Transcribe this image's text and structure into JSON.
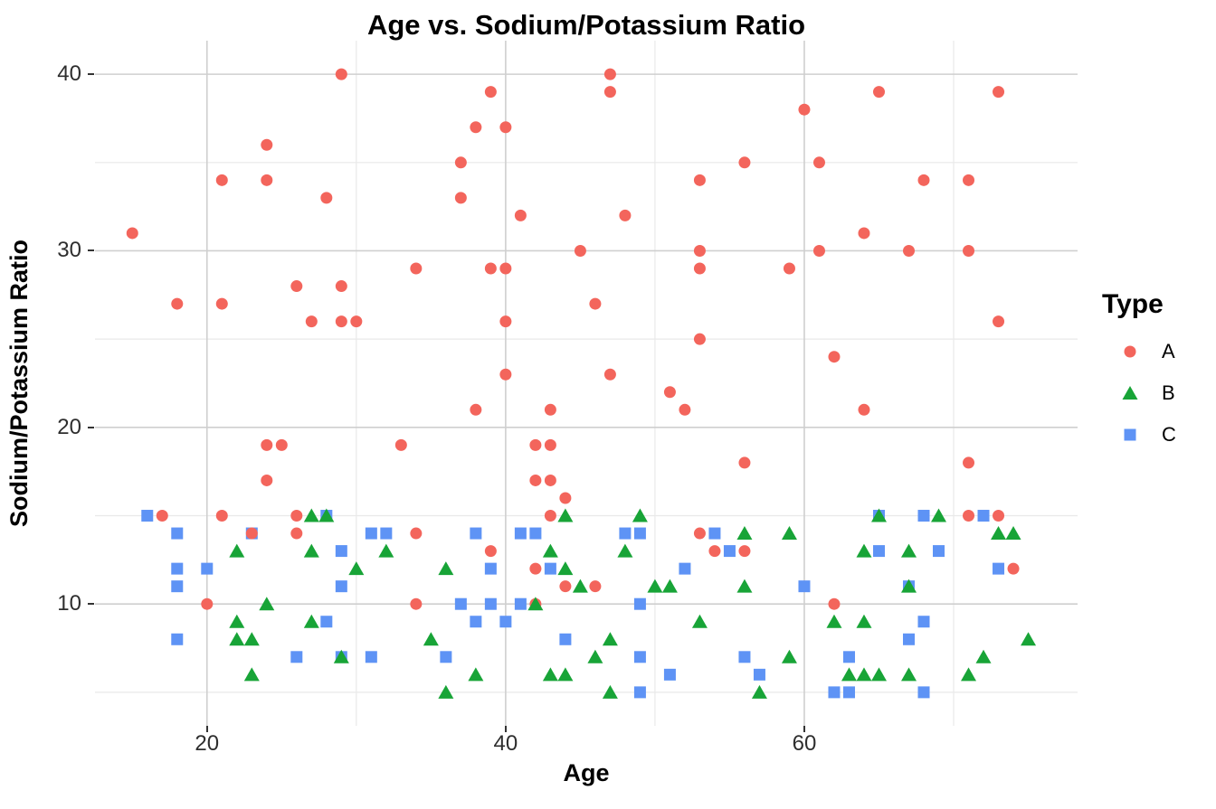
{
  "title": "Age vs. Sodium/Potassium Ratio",
  "legend": {
    "title": "Type"
  },
  "chart_data": {
    "type": "scatter",
    "title": "Age vs. Sodium/Potassium Ratio",
    "xlabel": "Age",
    "ylabel": "Sodium/Potassium Ratio",
    "x_ticks": [
      20,
      40,
      60
    ],
    "x_minor_ticks": [
      30,
      50,
      70
    ],
    "y_ticks": [
      10,
      20,
      30,
      40
    ],
    "y_minor_ticks": [
      5,
      15,
      25,
      35
    ],
    "xlim": [
      12.5,
      78.3
    ],
    "ylim": [
      3.1,
      41.9
    ],
    "grid": true,
    "legend_position": "right",
    "colors": {
      "major_grid": "#cfcfcf",
      "minor_grid": "#e9e9e9",
      "tick": "#333333"
    },
    "series": [
      {
        "name": "A",
        "shape": "circle",
        "color": "#f3655c",
        "points": [
          [
            15,
            31
          ],
          [
            17,
            15
          ],
          [
            18,
            27
          ],
          [
            20,
            10
          ],
          [
            21,
            34
          ],
          [
            21,
            27
          ],
          [
            21,
            15
          ],
          [
            23,
            14
          ],
          [
            24,
            36
          ],
          [
            24,
            34
          ],
          [
            24,
            19
          ],
          [
            24,
            17
          ],
          [
            25,
            19
          ],
          [
            26,
            28
          ],
          [
            26,
            15
          ],
          [
            26,
            14
          ],
          [
            27,
            26
          ],
          [
            28,
            33
          ],
          [
            29,
            40
          ],
          [
            29,
            28
          ],
          [
            29,
            26
          ],
          [
            30,
            26
          ],
          [
            33,
            19
          ],
          [
            34,
            29
          ],
          [
            34,
            14
          ],
          [
            34,
            10
          ],
          [
            37,
            35
          ],
          [
            37,
            33
          ],
          [
            38,
            37
          ],
          [
            38,
            21
          ],
          [
            39,
            39
          ],
          [
            39,
            29
          ],
          [
            39,
            13
          ],
          [
            40,
            37
          ],
          [
            40,
            29
          ],
          [
            40,
            26
          ],
          [
            40,
            23
          ],
          [
            41,
            32
          ],
          [
            42,
            19
          ],
          [
            42,
            17
          ],
          [
            42,
            12
          ],
          [
            42,
            10
          ],
          [
            43,
            21
          ],
          [
            43,
            19
          ],
          [
            43,
            17
          ],
          [
            43,
            15
          ],
          [
            44,
            16
          ],
          [
            44,
            11
          ],
          [
            45,
            30
          ],
          [
            46,
            27
          ],
          [
            46,
            11
          ],
          [
            47,
            40
          ],
          [
            47,
            39
          ],
          [
            47,
            23
          ],
          [
            48,
            32
          ],
          [
            51,
            22
          ],
          [
            52,
            21
          ],
          [
            53,
            34
          ],
          [
            53,
            30
          ],
          [
            53,
            29
          ],
          [
            53,
            25
          ],
          [
            53,
            14
          ],
          [
            54,
            13
          ],
          [
            56,
            35
          ],
          [
            56,
            18
          ],
          [
            56,
            13
          ],
          [
            59,
            29
          ],
          [
            60,
            38
          ],
          [
            61,
            35
          ],
          [
            61,
            30
          ],
          [
            62,
            24
          ],
          [
            62,
            10
          ],
          [
            64,
            31
          ],
          [
            64,
            21
          ],
          [
            65,
            39
          ],
          [
            67,
            30
          ],
          [
            68,
            34
          ],
          [
            71,
            34
          ],
          [
            71,
            30
          ],
          [
            71,
            18
          ],
          [
            71,
            15
          ],
          [
            73,
            39
          ],
          [
            73,
            26
          ],
          [
            73,
            15
          ],
          [
            74,
            12
          ]
        ]
      },
      {
        "name": "B",
        "shape": "triangle",
        "color": "#18a437",
        "points": [
          [
            22,
            13
          ],
          [
            22,
            9
          ],
          [
            22,
            8
          ],
          [
            23,
            8
          ],
          [
            23,
            6
          ],
          [
            24,
            10
          ],
          [
            27,
            15
          ],
          [
            27,
            13
          ],
          [
            27,
            9
          ],
          [
            28,
            15
          ],
          [
            29,
            7
          ],
          [
            30,
            12
          ],
          [
            32,
            13
          ],
          [
            35,
            8
          ],
          [
            36,
            12
          ],
          [
            36,
            5
          ],
          [
            38,
            6
          ],
          [
            42,
            10
          ],
          [
            43,
            13
          ],
          [
            43,
            6
          ],
          [
            44,
            15
          ],
          [
            44,
            12
          ],
          [
            44,
            6
          ],
          [
            45,
            11
          ],
          [
            46,
            7
          ],
          [
            47,
            8
          ],
          [
            47,
            5
          ],
          [
            48,
            13
          ],
          [
            49,
            15
          ],
          [
            50,
            11
          ],
          [
            51,
            11
          ],
          [
            53,
            9
          ],
          [
            56,
            14
          ],
          [
            56,
            11
          ],
          [
            57,
            5
          ],
          [
            59,
            14
          ],
          [
            59,
            7
          ],
          [
            62,
            9
          ],
          [
            63,
            6
          ],
          [
            64,
            13
          ],
          [
            64,
            9
          ],
          [
            64,
            6
          ],
          [
            65,
            15
          ],
          [
            65,
            6
          ],
          [
            67,
            13
          ],
          [
            67,
            11
          ],
          [
            67,
            6
          ],
          [
            69,
            15
          ],
          [
            71,
            6
          ],
          [
            72,
            7
          ],
          [
            73,
            14
          ],
          [
            74,
            14
          ],
          [
            75,
            8
          ]
        ]
      },
      {
        "name": "C",
        "shape": "square",
        "color": "#5e93f5",
        "points": [
          [
            16,
            15
          ],
          [
            18,
            14
          ],
          [
            18,
            12
          ],
          [
            18,
            11
          ],
          [
            18,
            8
          ],
          [
            20,
            12
          ],
          [
            23,
            14
          ],
          [
            26,
            7
          ],
          [
            28,
            15
          ],
          [
            28,
            9
          ],
          [
            29,
            13
          ],
          [
            29,
            11
          ],
          [
            29,
            7
          ],
          [
            31,
            14
          ],
          [
            31,
            7
          ],
          [
            32,
            14
          ],
          [
            36,
            7
          ],
          [
            37,
            10
          ],
          [
            38,
            14
          ],
          [
            38,
            9
          ],
          [
            39,
            12
          ],
          [
            39,
            10
          ],
          [
            40,
            9
          ],
          [
            41,
            14
          ],
          [
            41,
            10
          ],
          [
            42,
            14
          ],
          [
            43,
            12
          ],
          [
            44,
            8
          ],
          [
            48,
            14
          ],
          [
            49,
            14
          ],
          [
            49,
            10
          ],
          [
            49,
            7
          ],
          [
            49,
            5
          ],
          [
            51,
            6
          ],
          [
            52,
            12
          ],
          [
            54,
            14
          ],
          [
            55,
            13
          ],
          [
            56,
            7
          ],
          [
            57,
            6
          ],
          [
            60,
            11
          ],
          [
            62,
            5
          ],
          [
            63,
            7
          ],
          [
            63,
            5
          ],
          [
            65,
            15
          ],
          [
            65,
            13
          ],
          [
            67,
            11
          ],
          [
            67,
            8
          ],
          [
            68,
            15
          ],
          [
            68,
            9
          ],
          [
            68,
            5
          ],
          [
            69,
            13
          ],
          [
            72,
            15
          ],
          [
            73,
            12
          ]
        ]
      }
    ]
  }
}
